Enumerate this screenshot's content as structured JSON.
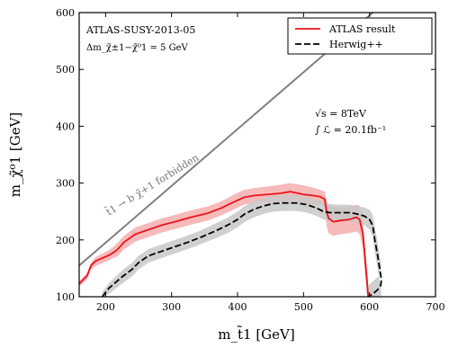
{
  "chart_data": {
    "type": "line",
    "xlabel": "m_t̃1 [GeV]",
    "ylabel": "m_χ̃⁰1 [GeV]",
    "xlim": [
      160,
      700
    ],
    "ylim": [
      100,
      600
    ],
    "xticks": [
      200,
      300,
      400,
      500,
      600,
      700
    ],
    "yticks": [
      100,
      200,
      300,
      400,
      500,
      600
    ],
    "grid": false,
    "legend_position": "top-right",
    "annotations": {
      "analysis": "ATLAS-SUSY-2013-05",
      "delta_m": "Δm_χ̃±1−χ̃⁰1 = 5 GeV",
      "sqrt_s": "√s = 8TeV",
      "lumi": "∫ ℒ = 20.1fb⁻¹",
      "forbidden": "t̃1 → b χ̃+1 forbidden"
    },
    "kinematic_line": {
      "x": [
        160,
        625
      ],
      "y": [
        155,
        620
      ]
    },
    "series": [
      {
        "name": "ATLAS result",
        "color": "#e8141c",
        "band_color": "#f4a3a3",
        "style": "solid",
        "x": [
          160,
          172,
          178,
          185,
          205,
          212,
          218,
          228,
          245,
          265,
          285,
          305,
          330,
          355,
          375,
          395,
          410,
          425,
          445,
          465,
          480,
          500,
          515,
          525,
          532,
          535,
          538,
          545,
          555,
          570,
          580,
          585,
          590,
          593,
          596,
          598
        ],
        "y": [
          123,
          137,
          155,
          163,
          173,
          178,
          183,
          196,
          210,
          218,
          226,
          232,
          240,
          247,
          256,
          267,
          275,
          278,
          280,
          282,
          285,
          280,
          278,
          276,
          272,
          250,
          238,
          232,
          234,
          236,
          240,
          236,
          210,
          170,
          130,
          100
        ],
        "band_upper": [
          127,
          142,
          160,
          170,
          182,
          188,
          195,
          207,
          222,
          230,
          238,
          244,
          252,
          259,
          268,
          280,
          288,
          291,
          294,
          297,
          300,
          296,
          292,
          288,
          285,
          270,
          262,
          258,
          256,
          258,
          262,
          260,
          235,
          195,
          155,
          125
        ],
        "band_lower": [
          118,
          130,
          148,
          154,
          164,
          168,
          171,
          183,
          197,
          205,
          213,
          219,
          227,
          234,
          243,
          254,
          262,
          265,
          266,
          267,
          268,
          264,
          262,
          262,
          258,
          225,
          212,
          207,
          210,
          212,
          215,
          210,
          185,
          145,
          105,
          100
        ]
      },
      {
        "name": "Herwig++",
        "color": "#000000",
        "band_color": "#c8c8c8",
        "style": "dashed",
        "x": [
          195,
          205,
          215,
          225,
          240,
          250,
          265,
          285,
          305,
          325,
          345,
          365,
          385,
          400,
          410,
          425,
          440,
          455,
          470,
          490,
          505,
          520,
          530,
          540,
          555,
          570,
          580,
          592,
          600,
          605,
          608,
          612,
          614,
          616,
          618,
          617,
          612,
          605,
          598
        ],
        "y": [
          100,
          115,
          125,
          135,
          148,
          160,
          172,
          180,
          188,
          196,
          205,
          215,
          226,
          236,
          245,
          254,
          260,
          264,
          265,
          265,
          262,
          256,
          250,
          248,
          248,
          248,
          246,
          242,
          236,
          225,
          200,
          175,
          160,
          145,
          130,
          120,
          112,
          105,
          100
        ],
        "band_upper": [
          108,
          124,
          135,
          146,
          160,
          172,
          184,
          192,
          200,
          208,
          217,
          228,
          239,
          250,
          259,
          268,
          274,
          278,
          279,
          279,
          276,
          270,
          265,
          263,
          262,
          262,
          260,
          257,
          253,
          244,
          223,
          198,
          183,
          168,
          152,
          143,
          134,
          127,
          120
        ],
        "band_lower": [
          100,
          105,
          114,
          123,
          136,
          148,
          160,
          168,
          176,
          184,
          193,
          202,
          212,
          222,
          231,
          240,
          246,
          250,
          251,
          251,
          248,
          242,
          236,
          233,
          233,
          233,
          231,
          226,
          218,
          206,
          178,
          152,
          137,
          122,
          108,
          100,
          100,
          100,
          100
        ]
      }
    ]
  }
}
